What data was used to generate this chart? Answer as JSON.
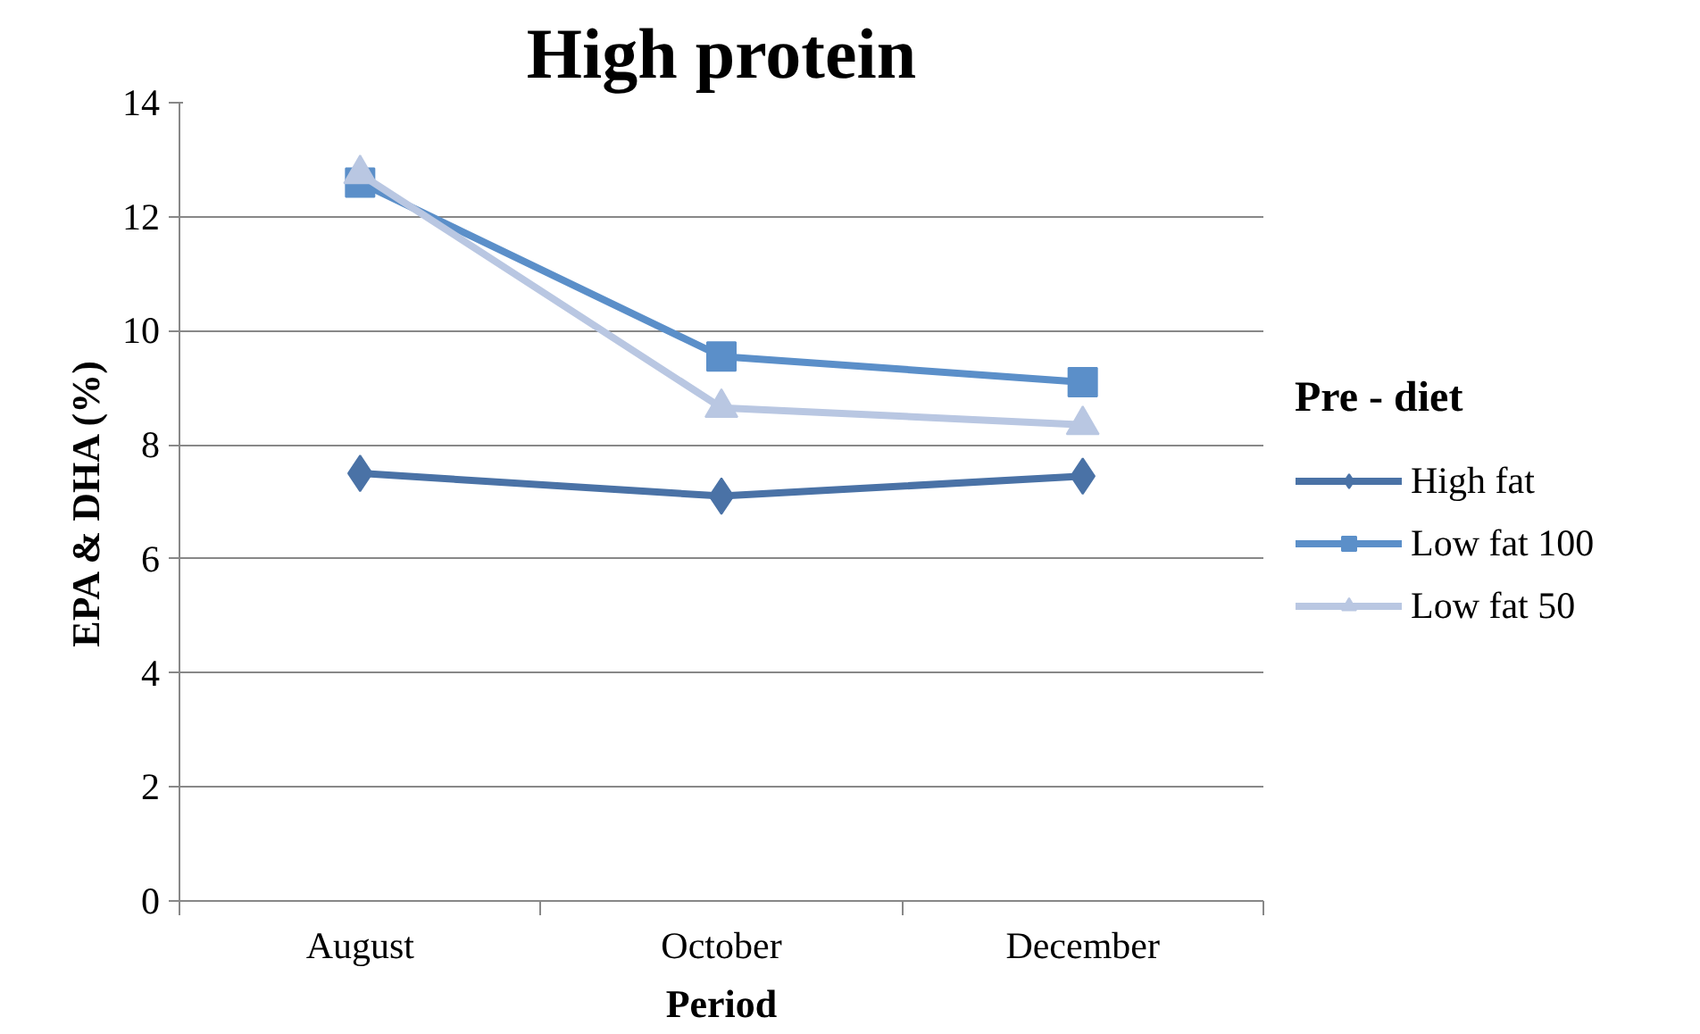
{
  "chart_data": {
    "type": "line",
    "title": "High protein",
    "xlabel": "Period",
    "ylabel": "EPA & DHA (%)",
    "legend_title": "Pre - diet",
    "categories": [
      "August",
      "October",
      "December"
    ],
    "series": [
      {
        "name": "High fat",
        "color": "#4a72a6",
        "marker": "diamond",
        "values": [
          7.5,
          7.1,
          7.45
        ]
      },
      {
        "name": "Low fat 100",
        "color": "#5b8fc9",
        "marker": "square",
        "values": [
          12.6,
          9.55,
          9.1
        ]
      },
      {
        "name": "Low fat 50",
        "color": "#b9c7e2",
        "marker": "triangle",
        "values": [
          12.75,
          8.65,
          8.35
        ]
      }
    ],
    "ylim": [
      0,
      14
    ],
    "yticks": [
      0,
      2,
      4,
      6,
      8,
      10,
      12,
      14
    ],
    "grid": "y",
    "legend": "right",
    "line_style": "solid"
  }
}
